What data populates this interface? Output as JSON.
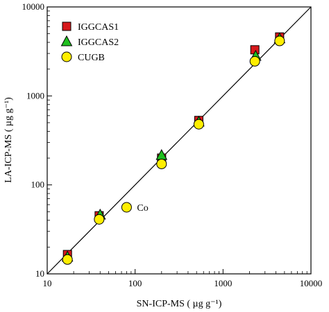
{
  "chart_data": {
    "type": "scatter",
    "title": "",
    "xlabel": "SN-ICP-MS ( µg g⁻¹)",
    "ylabel": "LA-ICP-MS ( µg g⁻¹)",
    "x_scale": "log",
    "y_scale": "log",
    "xlim": [
      10,
      10000
    ],
    "ylim": [
      10,
      10000
    ],
    "x_ticks": [
      "10",
      "100",
      "1000",
      "10000"
    ],
    "y_ticks": [
      "10",
      "100",
      "1000",
      "10000"
    ],
    "grid": false,
    "legend_position": "top-left",
    "reference_line": "1:1",
    "series": [
      {
        "name": "IGGCAS1",
        "marker": "square",
        "color": "#d7191c",
        "points": [
          [
            17,
            16.5
          ],
          [
            39,
            45
          ],
          [
            200,
            200
          ],
          [
            530,
            530
          ],
          [
            2300,
            3300
          ],
          [
            4400,
            4600
          ]
        ]
      },
      {
        "name": "IGGCAS2",
        "marker": "triangle",
        "color": "#1fbf1f",
        "points": [
          [
            17,
            15.5
          ],
          [
            40,
            46
          ],
          [
            200,
            215
          ],
          [
            530,
            510
          ],
          [
            2350,
            2800
          ],
          [
            4400,
            4400
          ]
        ]
      },
      {
        "name": "CUGB",
        "marker": "circle",
        "color": "#ffee00",
        "points": [
          [
            17,
            14.5
          ],
          [
            39,
            41
          ],
          [
            80,
            56
          ],
          [
            200,
            172
          ],
          [
            530,
            480
          ],
          [
            2300,
            2450
          ],
          [
            4400,
            4150
          ]
        ]
      }
    ],
    "annotations": [
      {
        "text": "Co",
        "x": 80,
        "y": 56
      }
    ]
  }
}
